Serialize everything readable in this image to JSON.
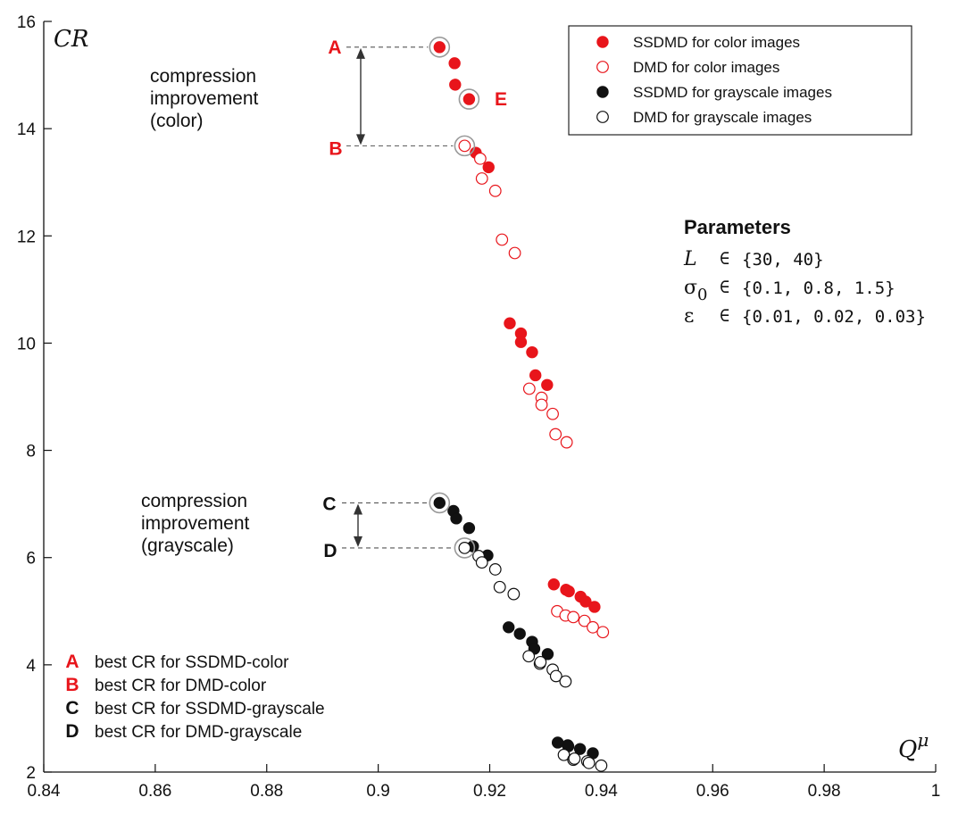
{
  "chart_data": {
    "type": "scatter",
    "xlabel": "Q^μ",
    "ylabel": "CR",
    "xlim": [
      0.84,
      1.0
    ],
    "ylim": [
      2,
      16
    ],
    "xticks": [
      "0.84",
      "0.86",
      "0.88",
      "0.9",
      "0.92",
      "0.94",
      "0.96",
      "0.98",
      "1"
    ],
    "yticks": [
      "2",
      "4",
      "6",
      "8",
      "10",
      "12",
      "14",
      "16"
    ],
    "grid": false,
    "legend_position": "top-right",
    "series": [
      {
        "name": "SSDMD for color images",
        "color": "#e8151b",
        "filled": true,
        "points": [
          [
            0.911,
            15.52
          ],
          [
            0.9137,
            15.22
          ],
          [
            0.9138,
            14.82
          ],
          [
            0.9163,
            14.55
          ],
          [
            0.9175,
            13.55
          ],
          [
            0.9198,
            13.28
          ],
          [
            0.9236,
            10.37
          ],
          [
            0.9256,
            10.18
          ],
          [
            0.9256,
            10.02
          ],
          [
            0.9276,
            9.83
          ],
          [
            0.9282,
            9.4
          ],
          [
            0.9303,
            9.22
          ],
          [
            0.9315,
            5.5
          ],
          [
            0.9337,
            5.4
          ],
          [
            0.9342,
            5.37
          ],
          [
            0.9363,
            5.27
          ],
          [
            0.9372,
            5.18
          ],
          [
            0.9388,
            5.08
          ]
        ]
      },
      {
        "name": "DMD for color images",
        "color": "#e8151b",
        "filled": false,
        "points": [
          [
            0.9155,
            13.68
          ],
          [
            0.9183,
            13.44
          ],
          [
            0.9186,
            13.07
          ],
          [
            0.921,
            12.84
          ],
          [
            0.9222,
            11.93
          ],
          [
            0.9245,
            11.68
          ],
          [
            0.9271,
            9.15
          ],
          [
            0.9293,
            8.98
          ],
          [
            0.9293,
            8.85
          ],
          [
            0.9313,
            8.68
          ],
          [
            0.9318,
            8.3
          ],
          [
            0.9338,
            8.15
          ],
          [
            0.9321,
            5.0
          ],
          [
            0.9336,
            4.92
          ],
          [
            0.935,
            4.89
          ],
          [
            0.937,
            4.82
          ],
          [
            0.9385,
            4.7
          ],
          [
            0.9403,
            4.61
          ]
        ]
      },
      {
        "name": "SSDMD for grayscale images",
        "color": "#111111",
        "filled": true,
        "points": [
          [
            0.911,
            7.02
          ],
          [
            0.9135,
            6.87
          ],
          [
            0.914,
            6.73
          ],
          [
            0.9163,
            6.55
          ],
          [
            0.917,
            6.21
          ],
          [
            0.9196,
            6.04
          ],
          [
            0.9234,
            4.7
          ],
          [
            0.9254,
            4.58
          ],
          [
            0.9276,
            4.43
          ],
          [
            0.928,
            4.3
          ],
          [
            0.9304,
            4.2
          ],
          [
            0.9322,
            2.55
          ],
          [
            0.934,
            2.5
          ],
          [
            0.9341,
            2.48
          ],
          [
            0.9362,
            2.43
          ],
          [
            0.9385,
            2.35
          ]
        ]
      },
      {
        "name": "DMD for grayscale images",
        "color": "#111111",
        "filled": false,
        "points": [
          [
            0.9155,
            6.18
          ],
          [
            0.918,
            6.03
          ],
          [
            0.9186,
            5.91
          ],
          [
            0.921,
            5.78
          ],
          [
            0.9218,
            5.45
          ],
          [
            0.9243,
            5.32
          ],
          [
            0.927,
            4.16
          ],
          [
            0.929,
            4.02
          ],
          [
            0.9291,
            4.05
          ],
          [
            0.9313,
            3.91
          ],
          [
            0.9319,
            3.79
          ],
          [
            0.9336,
            3.69
          ],
          [
            0.9333,
            2.32
          ],
          [
            0.935,
            2.23
          ],
          [
            0.9352,
            2.25
          ],
          [
            0.9375,
            2.2
          ],
          [
            0.9378,
            2.17
          ],
          [
            0.94,
            2.12
          ]
        ]
      }
    ],
    "highlights": [
      {
        "letter": "A",
        "point": [
          0.911,
          15.52
        ],
        "color": "#e8151b"
      },
      {
        "letter": "B",
        "point": [
          0.9155,
          13.68
        ],
        "color": "#e8151b"
      },
      {
        "letter": "E",
        "point": [
          0.9163,
          14.55
        ],
        "color": "#e8151b"
      },
      {
        "letter": "C",
        "point": [
          0.911,
          7.02
        ],
        "color": "#111111"
      },
      {
        "letter": "D",
        "point": [
          0.9155,
          6.18
        ],
        "color": "#111111"
      }
    ],
    "annotations": {
      "color_improvement": [
        "compression",
        "improvement",
        "(color)"
      ],
      "gray_improvement": [
        "compression",
        "improvement",
        "(grayscale)"
      ]
    },
    "key": [
      {
        "letter": "A",
        "text": "best CR for SSDMD-color",
        "color": "#e8151b"
      },
      {
        "letter": "B",
        "text": "best CR for DMD-color",
        "color": "#e8151b"
      },
      {
        "letter": "C",
        "text": "best CR for SSDMD-grayscale",
        "color": "#111111"
      },
      {
        "letter": "D",
        "text": "best CR for DMD-grayscale",
        "color": "#111111"
      }
    ],
    "parameters": {
      "title": "Parameters",
      "rows": [
        {
          "symbol": "L",
          "sub": "",
          "op": "∈",
          "value": "{30, 40}"
        },
        {
          "symbol": "σ",
          "sub": "0",
          "op": "∈",
          "value": "{0.1, 0.8, 1.5}"
        },
        {
          "symbol": "ε",
          "sub": "",
          "op": "∈",
          "value": "{0.01, 0.02, 0.03}"
        }
      ]
    }
  }
}
